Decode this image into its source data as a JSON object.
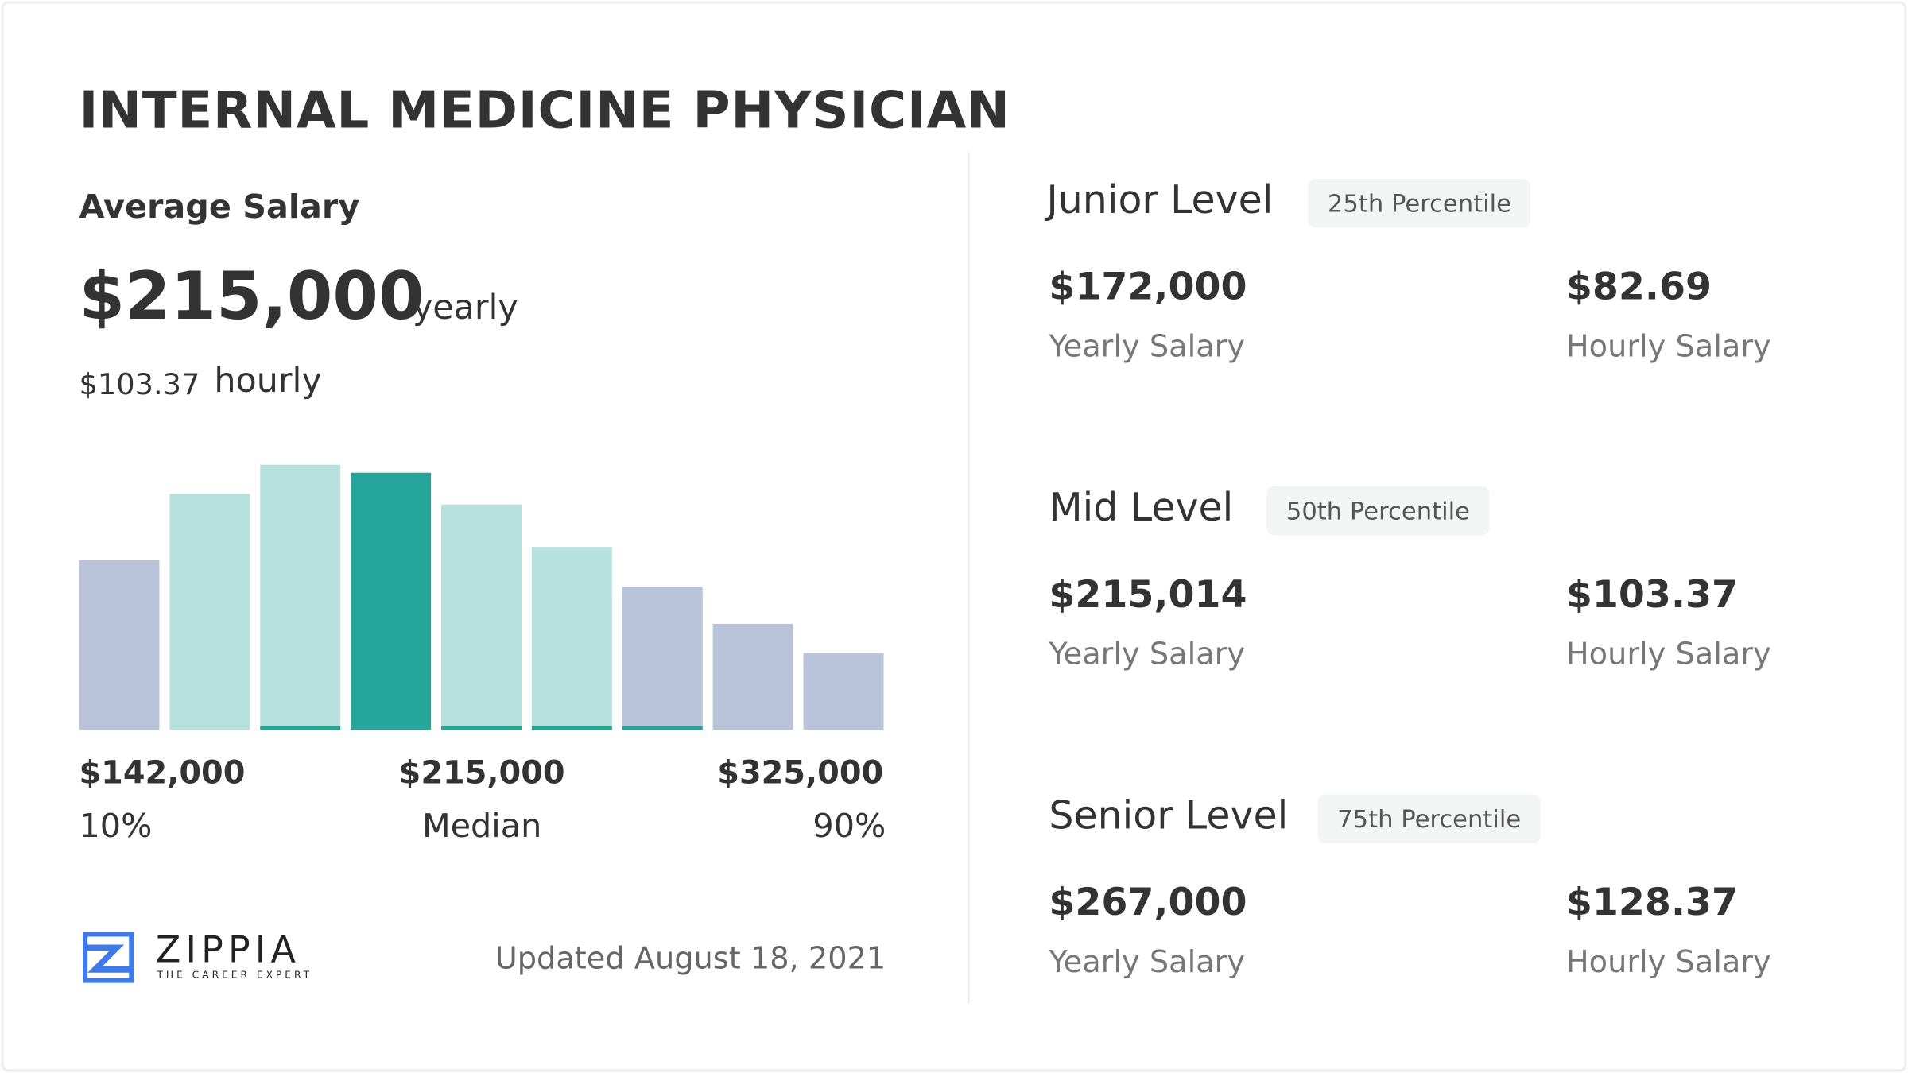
{
  "title": "INTERNAL MEDICINE PHYSICIAN",
  "average": {
    "label": "Average Salary",
    "yearly_value": "$215,000",
    "yearly_unit": "yearly",
    "hourly_value": "$103.37",
    "hourly_unit": "hourly"
  },
  "chart_data": {
    "type": "bar",
    "values": [
      64,
      89,
      100,
      97,
      85,
      69,
      54,
      40,
      29
    ],
    "bar_colors": [
      "#b9c4da",
      "#b7e1dd",
      "#b7e1dd",
      "#26a69a",
      "#b7e1dd",
      "#b7e1dd",
      "#b9c4da",
      "#b9c4da",
      "#b9c4da"
    ],
    "underline_bars": [
      2,
      4,
      5,
      6
    ],
    "underline_color": "#26a69a",
    "ticks": [
      {
        "value": "$142,000",
        "label": "10%"
      },
      {
        "value": "$215,000",
        "label": "Median"
      },
      {
        "value": "$325,000",
        "label": "90%"
      }
    ],
    "grid": false
  },
  "footer": {
    "brand": "ZIPPIA",
    "tagline": "THE CAREER EXPERT",
    "updated": "Updated August 18, 2021",
    "logo_color": "#3d7be8"
  },
  "levels": [
    {
      "name": "Junior Level",
      "badge": "25th Percentile",
      "yearly": "$172,000",
      "yearly_label": "Yearly Salary",
      "hourly": "$82.69",
      "hourly_label": "Hourly Salary"
    },
    {
      "name": "Mid Level",
      "badge": "50th Percentile",
      "yearly": "$215,014",
      "yearly_label": "Yearly Salary",
      "hourly": "$103.37",
      "hourly_label": "Hourly Salary"
    },
    {
      "name": "Senior Level",
      "badge": "75th Percentile",
      "yearly": "$267,000",
      "yearly_label": "Yearly Salary",
      "hourly": "$128.37",
      "hourly_label": "Hourly Salary"
    }
  ]
}
